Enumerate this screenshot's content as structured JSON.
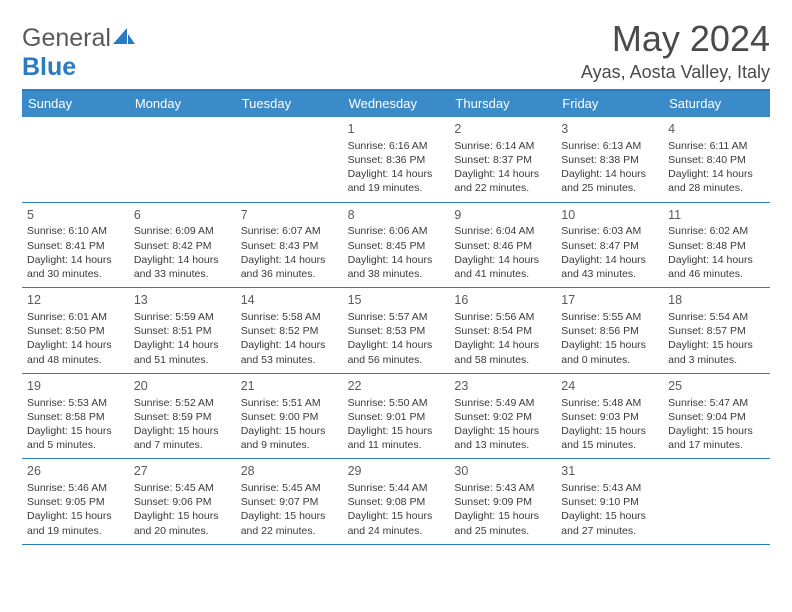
{
  "logo": {
    "word1": "General",
    "word2": "Blue"
  },
  "title": "May 2024",
  "location": "Ayas, Aosta Valley, Italy",
  "header_bg": "#3b8bc9",
  "rule_color": "#2a7bbf",
  "day_names": [
    "Sunday",
    "Monday",
    "Tuesday",
    "Wednesday",
    "Thursday",
    "Friday",
    "Saturday"
  ],
  "weeks": [
    [
      null,
      null,
      null,
      {
        "n": "1",
        "sr": "6:16 AM",
        "ss": "8:36 PM",
        "dl": "14 hours and 19 minutes."
      },
      {
        "n": "2",
        "sr": "6:14 AM",
        "ss": "8:37 PM",
        "dl": "14 hours and 22 minutes."
      },
      {
        "n": "3",
        "sr": "6:13 AM",
        "ss": "8:38 PM",
        "dl": "14 hours and 25 minutes."
      },
      {
        "n": "4",
        "sr": "6:11 AM",
        "ss": "8:40 PM",
        "dl": "14 hours and 28 minutes."
      }
    ],
    [
      {
        "n": "5",
        "sr": "6:10 AM",
        "ss": "8:41 PM",
        "dl": "14 hours and 30 minutes."
      },
      {
        "n": "6",
        "sr": "6:09 AM",
        "ss": "8:42 PM",
        "dl": "14 hours and 33 minutes."
      },
      {
        "n": "7",
        "sr": "6:07 AM",
        "ss": "8:43 PM",
        "dl": "14 hours and 36 minutes."
      },
      {
        "n": "8",
        "sr": "6:06 AM",
        "ss": "8:45 PM",
        "dl": "14 hours and 38 minutes."
      },
      {
        "n": "9",
        "sr": "6:04 AM",
        "ss": "8:46 PM",
        "dl": "14 hours and 41 minutes."
      },
      {
        "n": "10",
        "sr": "6:03 AM",
        "ss": "8:47 PM",
        "dl": "14 hours and 43 minutes."
      },
      {
        "n": "11",
        "sr": "6:02 AM",
        "ss": "8:48 PM",
        "dl": "14 hours and 46 minutes."
      }
    ],
    [
      {
        "n": "12",
        "sr": "6:01 AM",
        "ss": "8:50 PM",
        "dl": "14 hours and 48 minutes."
      },
      {
        "n": "13",
        "sr": "5:59 AM",
        "ss": "8:51 PM",
        "dl": "14 hours and 51 minutes."
      },
      {
        "n": "14",
        "sr": "5:58 AM",
        "ss": "8:52 PM",
        "dl": "14 hours and 53 minutes."
      },
      {
        "n": "15",
        "sr": "5:57 AM",
        "ss": "8:53 PM",
        "dl": "14 hours and 56 minutes."
      },
      {
        "n": "16",
        "sr": "5:56 AM",
        "ss": "8:54 PM",
        "dl": "14 hours and 58 minutes."
      },
      {
        "n": "17",
        "sr": "5:55 AM",
        "ss": "8:56 PM",
        "dl": "15 hours and 0 minutes."
      },
      {
        "n": "18",
        "sr": "5:54 AM",
        "ss": "8:57 PM",
        "dl": "15 hours and 3 minutes."
      }
    ],
    [
      {
        "n": "19",
        "sr": "5:53 AM",
        "ss": "8:58 PM",
        "dl": "15 hours and 5 minutes."
      },
      {
        "n": "20",
        "sr": "5:52 AM",
        "ss": "8:59 PM",
        "dl": "15 hours and 7 minutes."
      },
      {
        "n": "21",
        "sr": "5:51 AM",
        "ss": "9:00 PM",
        "dl": "15 hours and 9 minutes."
      },
      {
        "n": "22",
        "sr": "5:50 AM",
        "ss": "9:01 PM",
        "dl": "15 hours and 11 minutes."
      },
      {
        "n": "23",
        "sr": "5:49 AM",
        "ss": "9:02 PM",
        "dl": "15 hours and 13 minutes."
      },
      {
        "n": "24",
        "sr": "5:48 AM",
        "ss": "9:03 PM",
        "dl": "15 hours and 15 minutes."
      },
      {
        "n": "25",
        "sr": "5:47 AM",
        "ss": "9:04 PM",
        "dl": "15 hours and 17 minutes."
      }
    ],
    [
      {
        "n": "26",
        "sr": "5:46 AM",
        "ss": "9:05 PM",
        "dl": "15 hours and 19 minutes."
      },
      {
        "n": "27",
        "sr": "5:45 AM",
        "ss": "9:06 PM",
        "dl": "15 hours and 20 minutes."
      },
      {
        "n": "28",
        "sr": "5:45 AM",
        "ss": "9:07 PM",
        "dl": "15 hours and 22 minutes."
      },
      {
        "n": "29",
        "sr": "5:44 AM",
        "ss": "9:08 PM",
        "dl": "15 hours and 24 minutes."
      },
      {
        "n": "30",
        "sr": "5:43 AM",
        "ss": "9:09 PM",
        "dl": "15 hours and 25 minutes."
      },
      {
        "n": "31",
        "sr": "5:43 AM",
        "ss": "9:10 PM",
        "dl": "15 hours and 27 minutes."
      },
      null
    ]
  ],
  "labels": {
    "sunrise": "Sunrise:",
    "sunset": "Sunset:",
    "daylight": "Daylight:"
  }
}
